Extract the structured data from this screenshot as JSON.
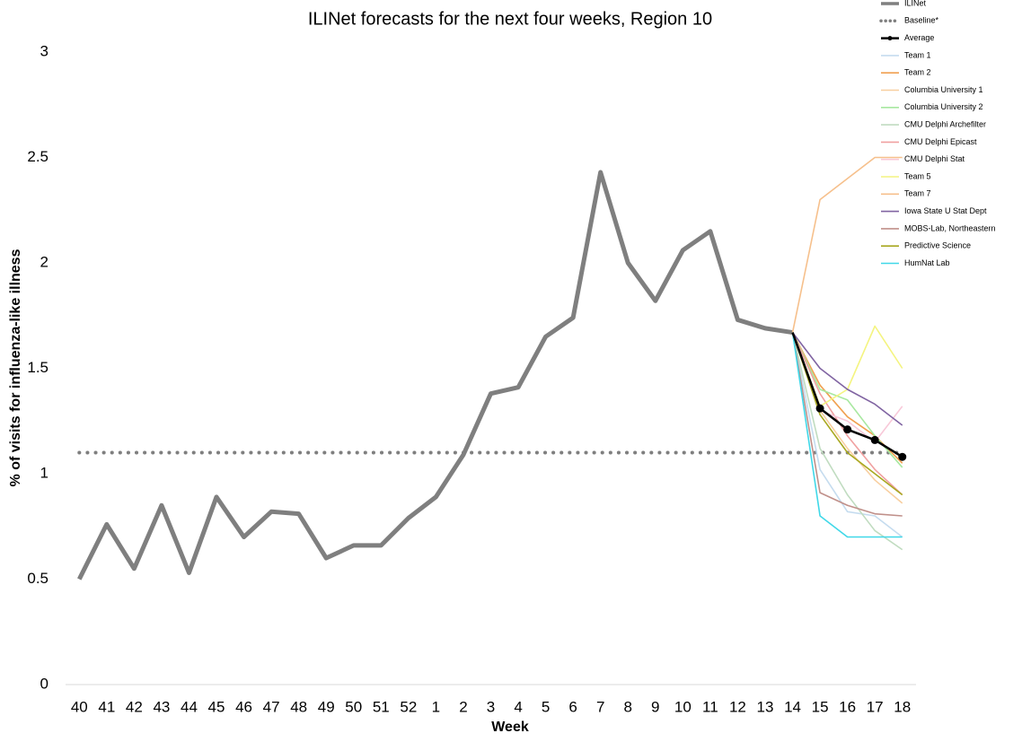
{
  "chart_data": {
    "type": "line",
    "title": "ILINet forecasts for the next four weeks, Region 10",
    "x_label": "Week",
    "y_label": "% of visits for influenza-like illness",
    "categories": [
      "40",
      "41",
      "42",
      "43",
      "44",
      "45",
      "46",
      "47",
      "48",
      "49",
      "50",
      "51",
      "52",
      "1",
      "2",
      "3",
      "4",
      "5",
      "6",
      "7",
      "8",
      "9",
      "10",
      "11",
      "12",
      "13",
      "14",
      "15",
      "16",
      "17",
      "18"
    ],
    "ylim": [
      0,
      3
    ],
    "yticks": [
      0,
      0.5,
      1,
      1.5,
      2,
      2.5,
      3
    ],
    "legend": "top-right",
    "series": [
      {
        "name": "ILINet",
        "color": "#7f7f7f",
        "style": "thick",
        "values": [
          0.5,
          0.76,
          0.55,
          0.85,
          0.53,
          0.89,
          0.7,
          0.82,
          0.81,
          0.6,
          0.66,
          0.66,
          0.79,
          0.89,
          1.09,
          1.38,
          1.41,
          1.65,
          1.74,
          2.43,
          2.0,
          1.82,
          2.06,
          2.15,
          1.73,
          1.69,
          1.67,
          null,
          null,
          null,
          null
        ]
      },
      {
        "name": "Baseline*",
        "color": "#7f7f7f",
        "style": "dotted",
        "values": [
          1.1,
          1.1,
          1.1,
          1.1,
          1.1,
          1.1,
          1.1,
          1.1,
          1.1,
          1.1,
          1.1,
          1.1,
          1.1,
          1.1,
          1.1,
          1.1,
          1.1,
          1.1,
          1.1,
          1.1,
          1.1,
          1.1,
          1.1,
          1.1,
          1.1,
          1.1,
          1.1,
          1.1,
          1.1,
          1.1,
          1.1
        ]
      },
      {
        "name": "Team 1",
        "color": "#c5dcef",
        "style": "thin",
        "values": [
          null,
          null,
          null,
          null,
          null,
          null,
          null,
          null,
          null,
          null,
          null,
          null,
          null,
          null,
          null,
          null,
          null,
          null,
          null,
          null,
          null,
          null,
          null,
          null,
          null,
          null,
          1.67,
          1.02,
          0.82,
          0.8,
          0.7
        ]
      },
      {
        "name": "Team 2",
        "color": "#f0a050",
        "style": "thin",
        "values": [
          null,
          null,
          null,
          null,
          null,
          null,
          null,
          null,
          null,
          null,
          null,
          null,
          null,
          null,
          null,
          null,
          null,
          null,
          null,
          null,
          null,
          null,
          null,
          null,
          null,
          null,
          1.67,
          1.42,
          1.27,
          1.18,
          1.05
        ]
      },
      {
        "name": "Columbia University 1",
        "color": "#f8cfa0",
        "style": "thin",
        "values": [
          null,
          null,
          null,
          null,
          null,
          null,
          null,
          null,
          null,
          null,
          null,
          null,
          null,
          null,
          null,
          null,
          null,
          null,
          null,
          null,
          null,
          null,
          null,
          null,
          null,
          null,
          1.67,
          1.3,
          1.12,
          0.97,
          0.86
        ]
      },
      {
        "name": "Columbia University 2",
        "color": "#a8e8a0",
        "style": "thin",
        "values": [
          null,
          null,
          null,
          null,
          null,
          null,
          null,
          null,
          null,
          null,
          null,
          null,
          null,
          null,
          null,
          null,
          null,
          null,
          null,
          null,
          null,
          null,
          null,
          null,
          null,
          null,
          1.67,
          1.4,
          1.35,
          1.18,
          1.03
        ]
      },
      {
        "name": "CMU Delphi Archefilter",
        "color": "#c0dcc0",
        "style": "thin",
        "values": [
          null,
          null,
          null,
          null,
          null,
          null,
          null,
          null,
          null,
          null,
          null,
          null,
          null,
          null,
          null,
          null,
          null,
          null,
          null,
          null,
          null,
          null,
          null,
          null,
          null,
          null,
          1.67,
          1.12,
          0.9,
          0.73,
          0.64
        ]
      },
      {
        "name": "CMU Delphi Epicast",
        "color": "#f0a0a0",
        "style": "thin",
        "values": [
          null,
          null,
          null,
          null,
          null,
          null,
          null,
          null,
          null,
          null,
          null,
          null,
          null,
          null,
          null,
          null,
          null,
          null,
          null,
          null,
          null,
          null,
          null,
          null,
          null,
          null,
          1.67,
          1.38,
          1.18,
          1.02,
          0.9
        ]
      },
      {
        "name": "CMU Delphi Stat",
        "color": "#f8c8d8",
        "style": "thin",
        "values": [
          null,
          null,
          null,
          null,
          null,
          null,
          null,
          null,
          null,
          null,
          null,
          null,
          null,
          null,
          null,
          null,
          null,
          null,
          null,
          null,
          null,
          null,
          null,
          null,
          null,
          null,
          1.67,
          1.3,
          1.25,
          1.15,
          1.32
        ]
      },
      {
        "name": "Team 5",
        "color": "#f4f480",
        "style": "thin",
        "values": [
          null,
          null,
          null,
          null,
          null,
          null,
          null,
          null,
          null,
          null,
          null,
          null,
          null,
          null,
          null,
          null,
          null,
          null,
          null,
          null,
          null,
          null,
          null,
          null,
          null,
          null,
          1.67,
          1.32,
          1.4,
          1.7,
          1.5
        ]
      },
      {
        "name": "Team 7",
        "color": "#f6c08c",
        "style": "thin",
        "values": [
          null,
          null,
          null,
          null,
          null,
          null,
          null,
          null,
          null,
          null,
          null,
          null,
          null,
          null,
          null,
          null,
          null,
          null,
          null,
          null,
          null,
          null,
          null,
          null,
          null,
          null,
          1.67,
          2.3,
          2.4,
          2.5,
          2.5
        ]
      },
      {
        "name": "Iowa State U Stat Dept",
        "color": "#8064a2",
        "style": "thin",
        "values": [
          null,
          null,
          null,
          null,
          null,
          null,
          null,
          null,
          null,
          null,
          null,
          null,
          null,
          null,
          null,
          null,
          null,
          null,
          null,
          null,
          null,
          null,
          null,
          null,
          null,
          null,
          1.67,
          1.5,
          1.4,
          1.33,
          1.23
        ]
      },
      {
        "name": "MOBS-Lab, Northeastern",
        "color": "#c0908a",
        "style": "thin",
        "values": [
          null,
          null,
          null,
          null,
          null,
          null,
          null,
          null,
          null,
          null,
          null,
          null,
          null,
          null,
          null,
          null,
          null,
          null,
          null,
          null,
          null,
          null,
          null,
          null,
          null,
          null,
          1.67,
          0.91,
          0.85,
          0.81,
          0.8
        ]
      },
      {
        "name": "Predictive Science",
        "color": "#a8a820",
        "style": "thin",
        "values": [
          null,
          null,
          null,
          null,
          null,
          null,
          null,
          null,
          null,
          null,
          null,
          null,
          null,
          null,
          null,
          null,
          null,
          null,
          null,
          null,
          null,
          null,
          null,
          null,
          null,
          null,
          1.67,
          1.28,
          1.1,
          1.0,
          0.9
        ]
      },
      {
        "name": "HumNat Lab",
        "color": "#40d8e8",
        "style": "thin",
        "values": [
          null,
          null,
          null,
          null,
          null,
          null,
          null,
          null,
          null,
          null,
          null,
          null,
          null,
          null,
          null,
          null,
          null,
          null,
          null,
          null,
          null,
          null,
          null,
          null,
          null,
          null,
          1.67,
          0.8,
          0.7,
          0.7,
          0.7
        ]
      },
      {
        "name": "Average",
        "color": "#000000",
        "style": "marker",
        "values": [
          null,
          null,
          null,
          null,
          null,
          null,
          null,
          null,
          null,
          null,
          null,
          null,
          null,
          null,
          null,
          null,
          null,
          null,
          null,
          null,
          null,
          null,
          null,
          null,
          null,
          null,
          1.67,
          1.31,
          1.21,
          1.16,
          1.08
        ]
      }
    ],
    "legend_order": [
      0,
      1,
      15,
      2,
      3,
      4,
      5,
      6,
      7,
      8,
      9,
      10,
      11,
      12,
      13,
      14
    ]
  }
}
